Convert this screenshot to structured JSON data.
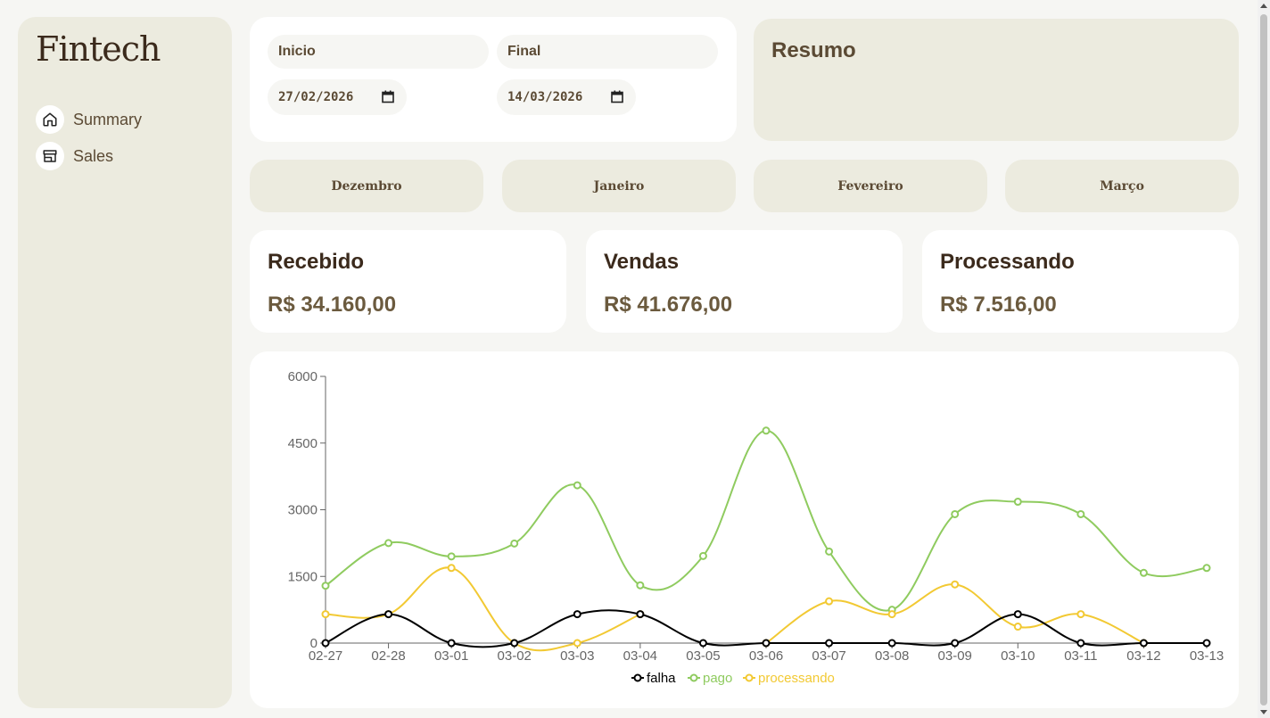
{
  "app": {
    "logo": "Fintech"
  },
  "sidebar": {
    "items": [
      {
        "label": "Summary",
        "icon": "home-icon"
      },
      {
        "label": "Sales",
        "icon": "store-icon"
      }
    ]
  },
  "filters": {
    "start_label": "Inicio",
    "end_label": "Final",
    "start_value": "27/02/2026",
    "end_value": "14/03/2026"
  },
  "resumo": {
    "title": "Resumo"
  },
  "months": [
    "Dezembro",
    "Janeiro",
    "Fevereiro",
    "Março"
  ],
  "stats": [
    {
      "title": "Recebido",
      "value": "R$ 34.160,00"
    },
    {
      "title": "Vendas",
      "value": "R$ 41.676,00"
    },
    {
      "title": "Processando",
      "value": "R$ 7.516,00"
    }
  ],
  "colors": {
    "falha": "#000000",
    "pago": "#8fcb5f",
    "processando": "#f2c933",
    "brand_text": "#3b2a1c",
    "card_beige": "#ecebdf"
  },
  "chart_data": {
    "type": "line",
    "categories": [
      "02-27",
      "02-28",
      "03-01",
      "03-02",
      "03-03",
      "03-04",
      "03-05",
      "03-06",
      "03-07",
      "03-08",
      "03-09",
      "03-10",
      "03-11",
      "03-12",
      "03-13"
    ],
    "y_ticks": [
      "0",
      "1500",
      "3000",
      "4500",
      "6000"
    ],
    "ylim": [
      0,
      6000
    ],
    "series": [
      {
        "name": "falha",
        "values": [
          0,
          650,
          0,
          0,
          650,
          650,
          0,
          0,
          0,
          0,
          0,
          650,
          0,
          0,
          0
        ]
      },
      {
        "name": "pago",
        "values": [
          1290,
          2250,
          1950,
          2240,
          3550,
          1300,
          1960,
          4780,
          2060,
          750,
          2900,
          3180,
          2900,
          1580,
          1690
        ]
      },
      {
        "name": "processando",
        "values": [
          650,
          650,
          1690,
          0,
          0,
          650,
          null,
          0,
          940,
          650,
          1320,
          370,
          650,
          0,
          null
        ]
      }
    ],
    "legend": "bottom"
  }
}
